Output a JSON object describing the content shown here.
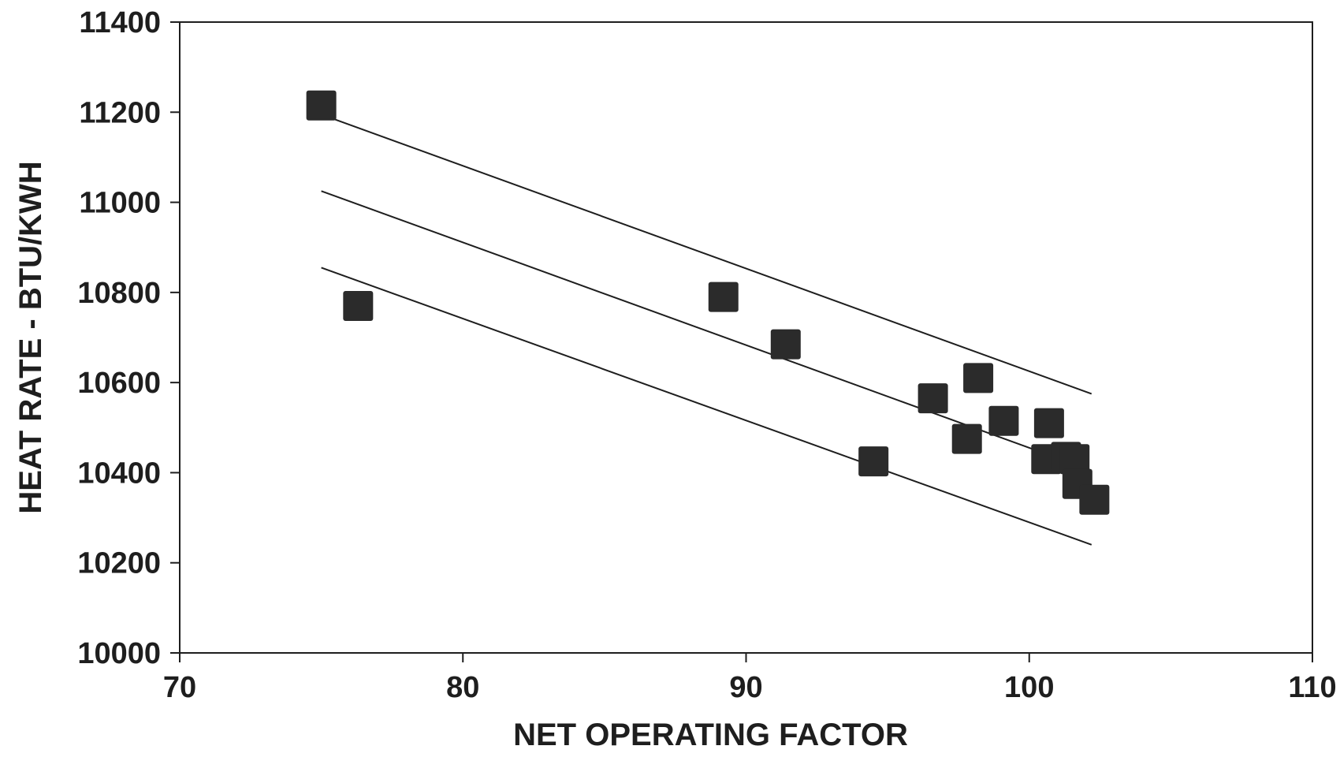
{
  "chart_data": {
    "type": "scatter",
    "title": "",
    "xlabel": "NET OPERATING FACTOR",
    "ylabel": "HEAT RATE - BTU/KWH",
    "xlim": [
      70,
      110
    ],
    "ylim": [
      10000,
      11400
    ],
    "x_ticks": [
      "70",
      "80",
      "90",
      "100",
      "110"
    ],
    "y_ticks": [
      "10000",
      "10200",
      "10400",
      "10600",
      "10800",
      "11000",
      "11200",
      "11400"
    ],
    "grid": false,
    "legend": "none",
    "marker": "square",
    "series": [
      {
        "points": [
          {
            "x": 75.0,
            "y": 11215
          },
          {
            "x": 76.3,
            "y": 10770
          },
          {
            "x": 89.2,
            "y": 10790
          },
          {
            "x": 91.4,
            "y": 10685
          },
          {
            "x": 94.5,
            "y": 10425
          },
          {
            "x": 96.6,
            "y": 10565
          },
          {
            "x": 97.8,
            "y": 10475
          },
          {
            "x": 98.2,
            "y": 10610
          },
          {
            "x": 99.1,
            "y": 10515
          },
          {
            "x": 100.6,
            "y": 10430
          },
          {
            "x": 100.7,
            "y": 10510
          },
          {
            "x": 101.3,
            "y": 10435
          },
          {
            "x": 101.6,
            "y": 10430
          },
          {
            "x": 101.7,
            "y": 10375
          },
          {
            "x": 102.3,
            "y": 10340
          }
        ]
      }
    ],
    "lines": [
      {
        "x": [
          75,
          102.2
        ],
        "y": [
          11195,
          10575
        ]
      },
      {
        "x": [
          75,
          102.2
        ],
        "y": [
          11025,
          10405
        ]
      },
      {
        "x": [
          75,
          102.2
        ],
        "y": [
          10855,
          10240
        ]
      }
    ],
    "colors": {
      "marker": "#2b2b2b",
      "line": "#1e1e1e",
      "axis": "#1e1e1e",
      "text": "#1e1e1e"
    }
  }
}
